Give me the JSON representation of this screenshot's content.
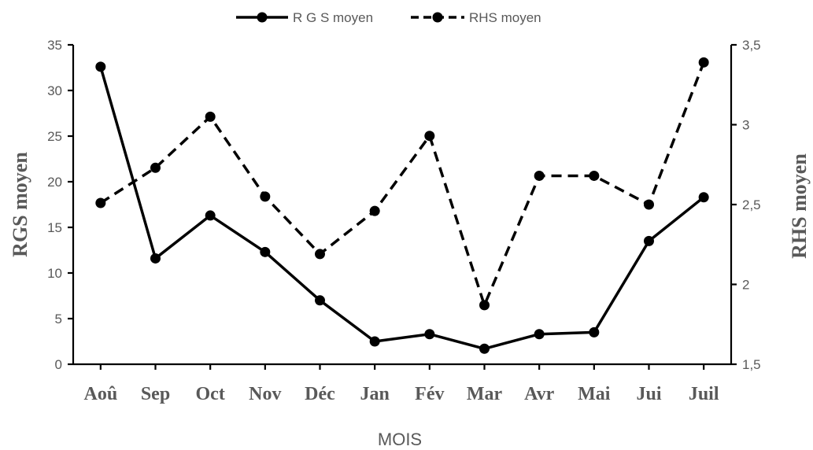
{
  "chart_data": {
    "type": "line",
    "categories": [
      "Aoû",
      "Sep",
      "Oct",
      "Nov",
      "Déc",
      "Jan",
      "Fév",
      "Mar",
      "Avr",
      "Mai",
      "Jui",
      "Juil"
    ],
    "series": [
      {
        "name": "R G S moyen",
        "axis": "left",
        "style": "solid",
        "color": "#000000",
        "values": [
          32.6,
          11.6,
          16.3,
          12.3,
          7.0,
          2.5,
          3.3,
          1.7,
          3.3,
          3.5,
          13.5,
          18.3
        ]
      },
      {
        "name": "RHS moyen",
        "axis": "right",
        "style": "dashed",
        "color": "#000000",
        "values": [
          2.51,
          2.73,
          3.05,
          2.55,
          2.19,
          2.46,
          2.93,
          1.87,
          2.68,
          2.68,
          2.5,
          3.39
        ]
      }
    ],
    "xlabel": "MOIS",
    "ylabel": "RGS moyen",
    "y2label": "RHS moyen",
    "ylim": [
      0,
      35
    ],
    "yticks": [
      "0",
      "5",
      "10",
      "15",
      "20",
      "25",
      "30",
      "35"
    ],
    "ytick_values": [
      0,
      5,
      10,
      15,
      20,
      25,
      30,
      35
    ],
    "y2lim": [
      1.5,
      3.5
    ],
    "y2ticks": [
      "1,5",
      "2",
      "2,5",
      "3",
      "3,5"
    ],
    "y2tick_values": [
      1.5,
      2,
      2.5,
      3,
      3.5
    ],
    "legend_position": "top-center",
    "grid": false
  }
}
